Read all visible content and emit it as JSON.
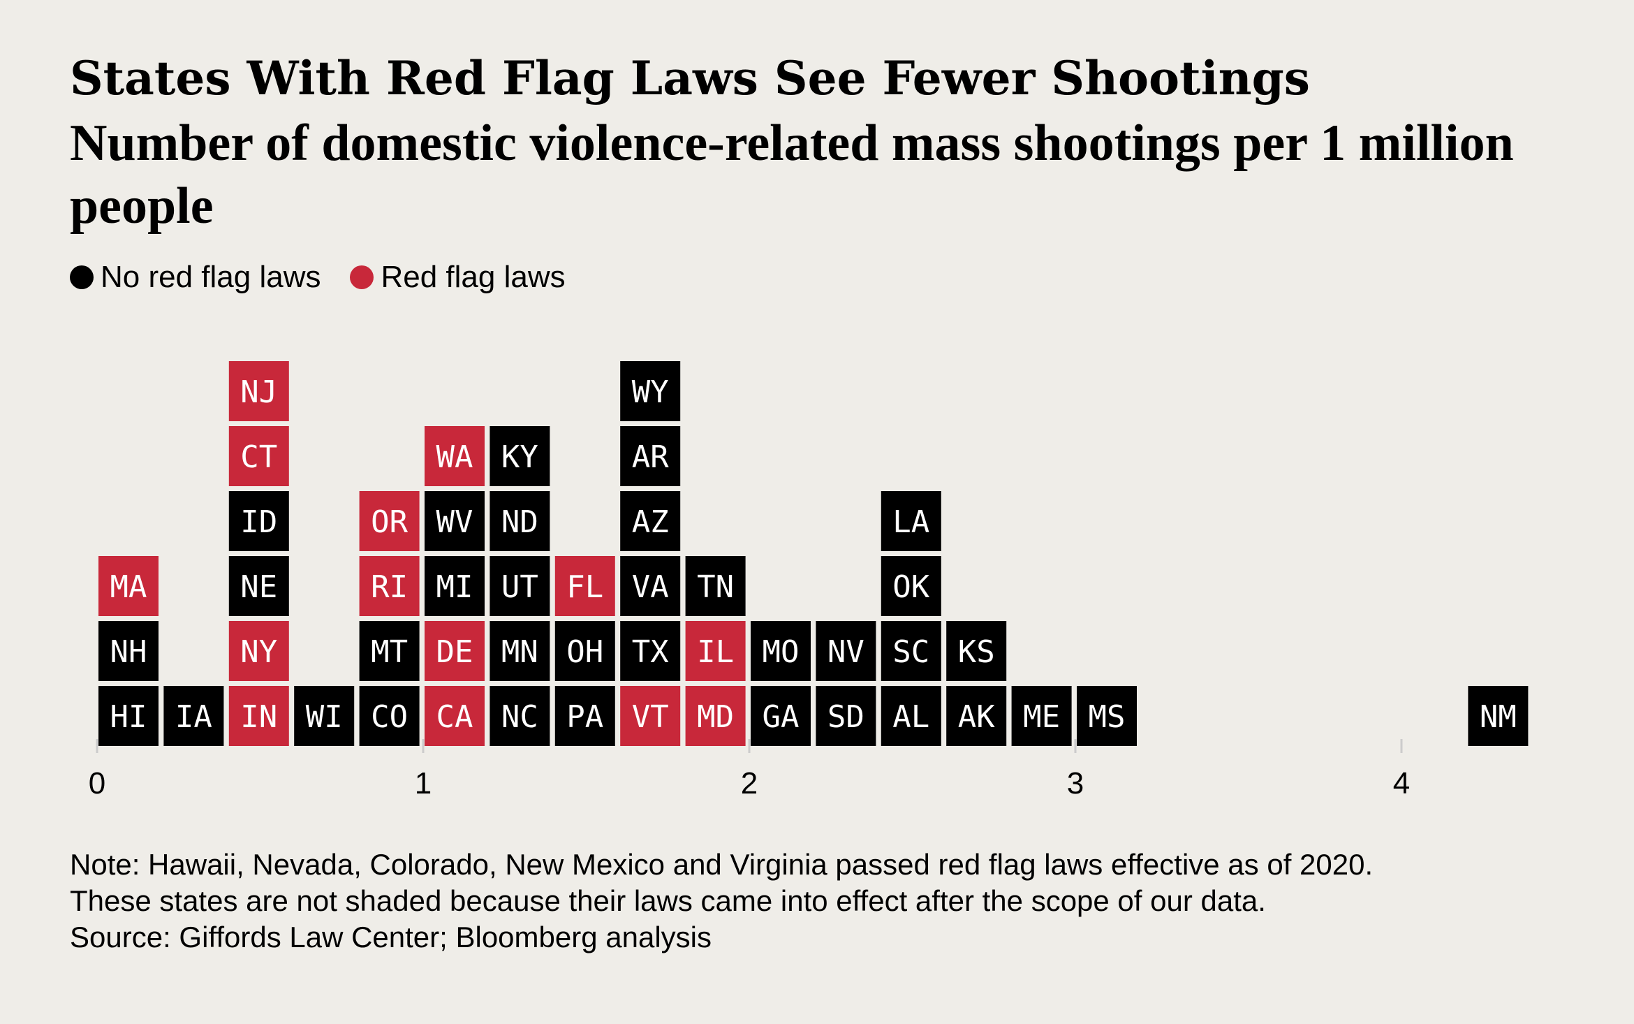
{
  "title": "States With Red Flag Laws See Fewer Shootings",
  "subtitle": "Number of domestic violence-related mass shootings per 1 million people",
  "legend": [
    {
      "label": "No red flag laws",
      "color": "#000000"
    },
    {
      "label": "Red flag laws",
      "color": "#c8283a"
    }
  ],
  "colors": {
    "no_red_flag": "#000000",
    "red_flag": "#c8283a",
    "background": "#efede8",
    "tick": "#cccccc"
  },
  "chart_data": {
    "type": "dot-histogram",
    "x_label": "",
    "xlim": [
      0,
      4.4
    ],
    "ticks": [
      "0",
      "1",
      "2",
      "3",
      "4"
    ],
    "tick_values": [
      0,
      1,
      2,
      3,
      4
    ],
    "bin_width": 0.2,
    "bins": [
      {
        "bin_start": 0.0,
        "states": [
          {
            "state": "HI",
            "red_flag": false
          },
          {
            "state": "NH",
            "red_flag": false
          },
          {
            "state": "MA",
            "red_flag": true
          }
        ]
      },
      {
        "bin_start": 0.2,
        "states": [
          {
            "state": "IA",
            "red_flag": false
          }
        ]
      },
      {
        "bin_start": 0.4,
        "states": [
          {
            "state": "IN",
            "red_flag": true
          },
          {
            "state": "NY",
            "red_flag": true
          },
          {
            "state": "NE",
            "red_flag": false
          },
          {
            "state": "ID",
            "red_flag": false
          },
          {
            "state": "CT",
            "red_flag": true
          },
          {
            "state": "NJ",
            "red_flag": true
          }
        ]
      },
      {
        "bin_start": 0.6,
        "states": [
          {
            "state": "WI",
            "red_flag": false
          }
        ]
      },
      {
        "bin_start": 0.8,
        "states": [
          {
            "state": "CO",
            "red_flag": false
          },
          {
            "state": "MT",
            "red_flag": false
          },
          {
            "state": "RI",
            "red_flag": true
          },
          {
            "state": "OR",
            "red_flag": true
          }
        ]
      },
      {
        "bin_start": 1.0,
        "states": [
          {
            "state": "CA",
            "red_flag": true
          },
          {
            "state": "DE",
            "red_flag": true
          },
          {
            "state": "MI",
            "red_flag": false
          },
          {
            "state": "WV",
            "red_flag": false
          },
          {
            "state": "WA",
            "red_flag": true
          }
        ]
      },
      {
        "bin_start": 1.2,
        "states": [
          {
            "state": "NC",
            "red_flag": false
          },
          {
            "state": "MN",
            "red_flag": false
          },
          {
            "state": "UT",
            "red_flag": false
          },
          {
            "state": "ND",
            "red_flag": false
          },
          {
            "state": "KY",
            "red_flag": false
          }
        ]
      },
      {
        "bin_start": 1.4,
        "states": [
          {
            "state": "PA",
            "red_flag": false
          },
          {
            "state": "OH",
            "red_flag": false
          },
          {
            "state": "FL",
            "red_flag": true
          }
        ]
      },
      {
        "bin_start": 1.6,
        "states": [
          {
            "state": "VT",
            "red_flag": true
          },
          {
            "state": "TX",
            "red_flag": false
          },
          {
            "state": "VA",
            "red_flag": false
          },
          {
            "state": "AZ",
            "red_flag": false
          },
          {
            "state": "AR",
            "red_flag": false
          },
          {
            "state": "WY",
            "red_flag": false
          }
        ]
      },
      {
        "bin_start": 1.8,
        "states": [
          {
            "state": "MD",
            "red_flag": true
          },
          {
            "state": "IL",
            "red_flag": true
          },
          {
            "state": "TN",
            "red_flag": false
          }
        ]
      },
      {
        "bin_start": 2.0,
        "states": [
          {
            "state": "GA",
            "red_flag": false
          },
          {
            "state": "MO",
            "red_flag": false
          }
        ]
      },
      {
        "bin_start": 2.2,
        "states": [
          {
            "state": "SD",
            "red_flag": false
          },
          {
            "state": "NV",
            "red_flag": false
          }
        ]
      },
      {
        "bin_start": 2.4,
        "states": [
          {
            "state": "AL",
            "red_flag": false
          },
          {
            "state": "SC",
            "red_flag": false
          },
          {
            "state": "OK",
            "red_flag": false
          },
          {
            "state": "LA",
            "red_flag": false
          }
        ]
      },
      {
        "bin_start": 2.6,
        "states": [
          {
            "state": "AK",
            "red_flag": false
          },
          {
            "state": "KS",
            "red_flag": false
          }
        ]
      },
      {
        "bin_start": 2.8,
        "states": [
          {
            "state": "ME",
            "red_flag": false
          }
        ]
      },
      {
        "bin_start": 3.0,
        "states": [
          {
            "state": "MS",
            "red_flag": false
          }
        ]
      },
      {
        "bin_start": 4.2,
        "states": [
          {
            "state": "NM",
            "red_flag": false
          }
        ]
      }
    ]
  },
  "notes": [
    "Note: Hawaii, Nevada, Colorado, New Mexico and Virginia passed red flag laws effective as of 2020.",
    "These states are not shaded because their laws came into effect after the scope of our data.",
    "Source: Giffords Law Center; Bloomberg analysis"
  ]
}
